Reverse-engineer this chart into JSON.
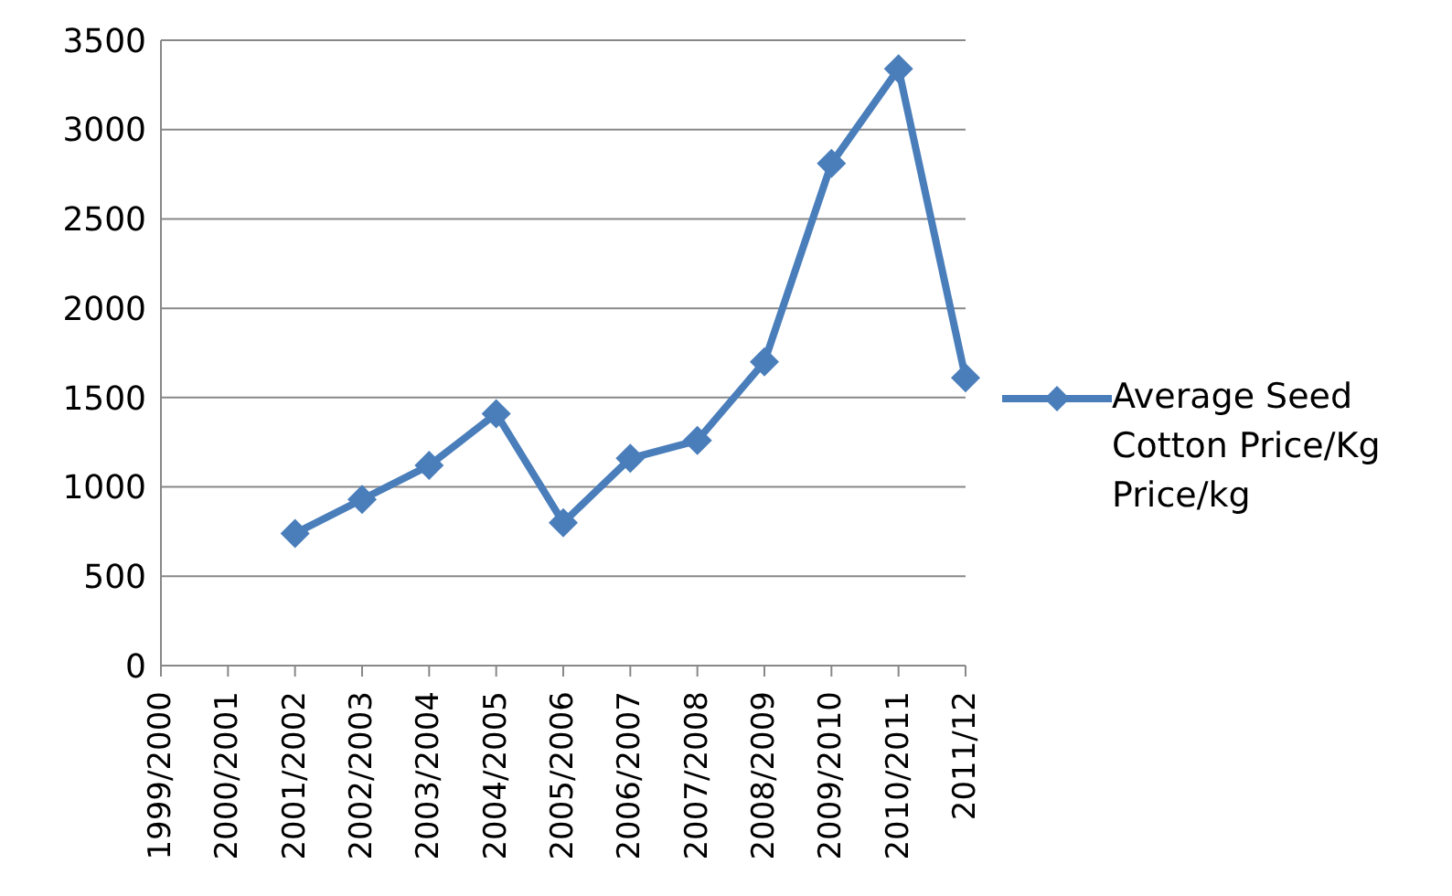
{
  "chart_data": {
    "type": "line",
    "categories": [
      "1999/2000",
      "2000/2001",
      "2001/2002",
      "2002/2003",
      "2003/2004",
      "2004/2005",
      "2005/2006",
      "2006/2007",
      "2007/2008",
      "2008/2009",
      "2009/2010",
      "2010/2011",
      "2011/12"
    ],
    "series": [
      {
        "name": "Average Seed Cotton Price/Kg Price/kg",
        "color": "#4a7ebb",
        "values": [
          null,
          null,
          740,
          930,
          1120,
          1410,
          800,
          1160,
          1260,
          1700,
          2810,
          3340,
          1610
        ]
      }
    ],
    "ylim": [
      0,
      3500
    ],
    "yticks": [
      0,
      500,
      1000,
      1500,
      2000,
      2500,
      3000,
      3500
    ],
    "grid": "y",
    "legend": "right",
    "marker": "diamond",
    "line_style": "solid"
  }
}
